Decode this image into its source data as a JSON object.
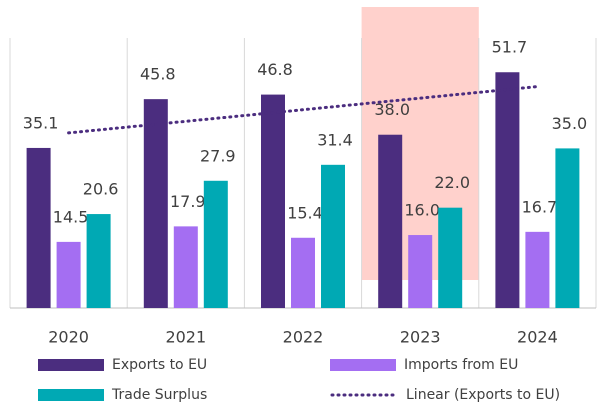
{
  "chart_data": {
    "type": "bar",
    "categories": [
      "2020",
      "2021",
      "2022",
      "2023",
      "2024"
    ],
    "series": [
      {
        "name": "Exports to EU",
        "color": "#4b2d7f",
        "values": [
          35.1,
          45.8,
          46.8,
          38.0,
          51.7
        ],
        "value_labels": [
          "35.1",
          "45.8",
          "46.8",
          "38.0",
          "51.7"
        ]
      },
      {
        "name": "Imports from EU",
        "color": "#a46ef2",
        "values": [
          14.5,
          17.9,
          15.4,
          16.0,
          16.7
        ],
        "value_labels": [
          "14.5",
          "17.9",
          "15.4",
          "16.0",
          "16.7"
        ]
      },
      {
        "name": "Trade Surplus",
        "color": "#00a9b4",
        "values": [
          20.6,
          27.9,
          31.4,
          22.0,
          35.0
        ],
        "value_labels": [
          "20.6",
          "27.9",
          "31.4",
          "22.0",
          "35.0"
        ]
      }
    ],
    "trendline": {
      "name": "Linear (Exports to EU)",
      "series": 0,
      "color": "#4b2d7f"
    },
    "highlight": {
      "category": "2023",
      "color": "#ffd1cc"
    },
    "grid": true
  }
}
